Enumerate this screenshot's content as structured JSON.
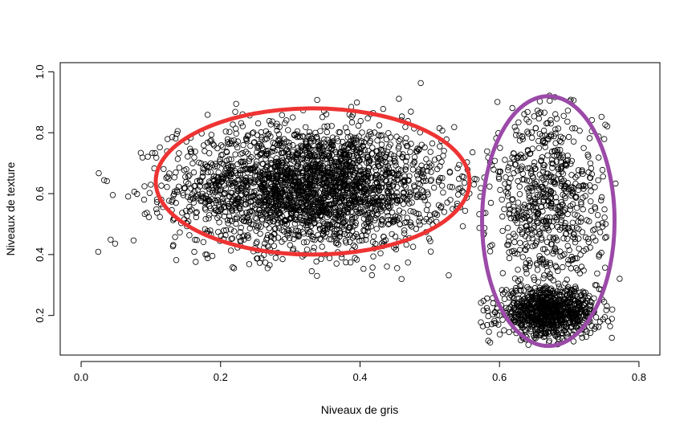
{
  "chart_data": {
    "type": "scatter",
    "title": "",
    "xlabel": "Niveaux de gris",
    "ylabel": "Niveaux de texture",
    "xlim": [
      -0.03,
      0.83
    ],
    "ylim": [
      0.07,
      1.03
    ],
    "xticks": [
      0.0,
      0.2,
      0.4,
      0.6,
      0.8
    ],
    "xtick_labels": [
      "0.0",
      "0.2",
      "0.4",
      "0.6",
      "0.8"
    ],
    "yticks": [
      0.2,
      0.4,
      0.6,
      0.8,
      1.0
    ],
    "ytick_labels": [
      "0.2",
      "0.4",
      "0.6",
      "0.8",
      "1.0"
    ],
    "grid": false,
    "legend": "none",
    "marker": "open-circle",
    "clusters": [
      {
        "label": "",
        "x_center": 0.33,
        "y_center": 0.62,
        "x_spread": 0.095,
        "y_spread": 0.1,
        "x_range": [
          0.0,
          0.58
        ],
        "y_range": [
          0.29,
          1.0
        ],
        "approx_points": 2600
      },
      {
        "label": "",
        "x_center": 0.67,
        "y_center": 0.21,
        "x_spread": 0.035,
        "y_spread": 0.04,
        "x_range": [
          0.57,
          0.8
        ],
        "y_range": [
          0.1,
          0.3
        ],
        "approx_points": 900
      },
      {
        "label": "",
        "x_center": 0.67,
        "y_center": 0.55,
        "x_spread": 0.04,
        "y_spread": 0.17,
        "x_range": [
          0.57,
          0.78
        ],
        "y_range": [
          0.25,
          0.95
        ],
        "approx_points": 700
      }
    ],
    "highlights": [
      {
        "shape": "ellipse",
        "color": "#ee3333",
        "x_center": 0.332,
        "y_center": 0.64,
        "x_radius": 0.225,
        "y_radius": 0.24
      },
      {
        "shape": "ellipse",
        "color": "#9b4aa8",
        "x_center": 0.67,
        "y_center": 0.51,
        "x_radius": 0.095,
        "y_radius": 0.41
      }
    ]
  },
  "colors": {
    "points": "#000000",
    "red_ellipse": "#ee3333",
    "purple_ellipse": "#9b4aa8"
  }
}
